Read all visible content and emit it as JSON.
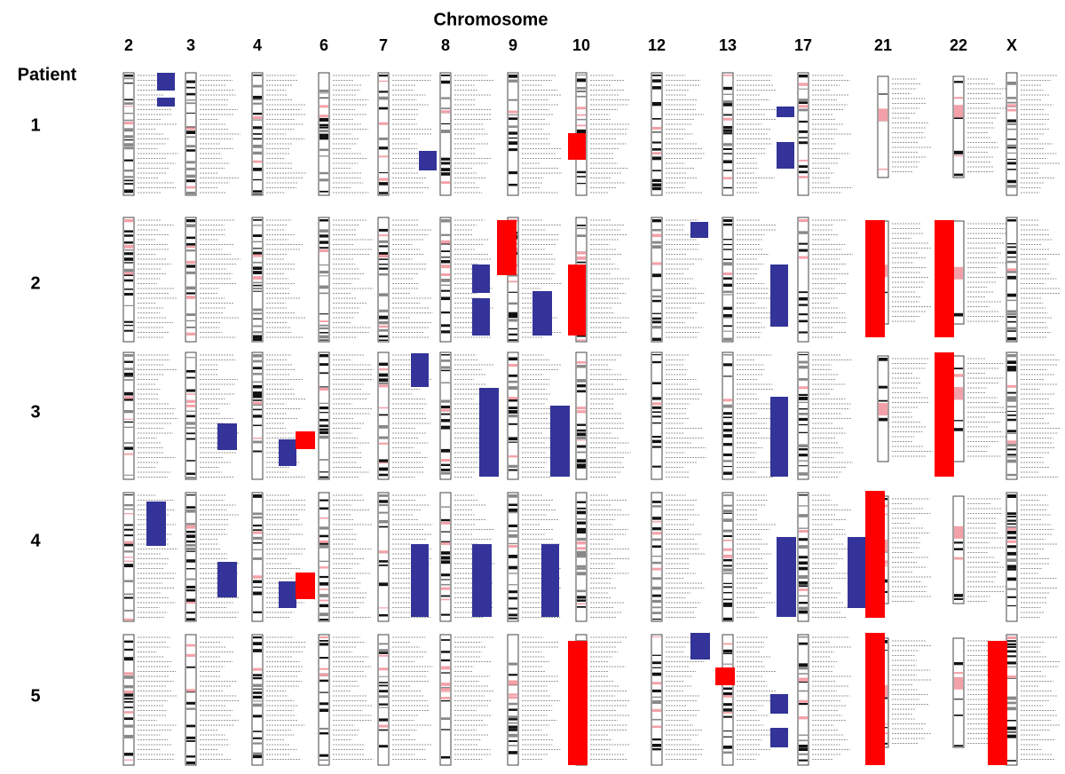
{
  "header": {
    "title": "Chromosome",
    "row_title": "Patient"
  },
  "chromosomes": [
    "2",
    "3",
    "4",
    "6",
    "7",
    "8",
    "9",
    "10",
    "12",
    "13",
    "17",
    "21",
    "22",
    "X"
  ],
  "patients": [
    "1",
    "2",
    "3",
    "4",
    "5"
  ]
}
